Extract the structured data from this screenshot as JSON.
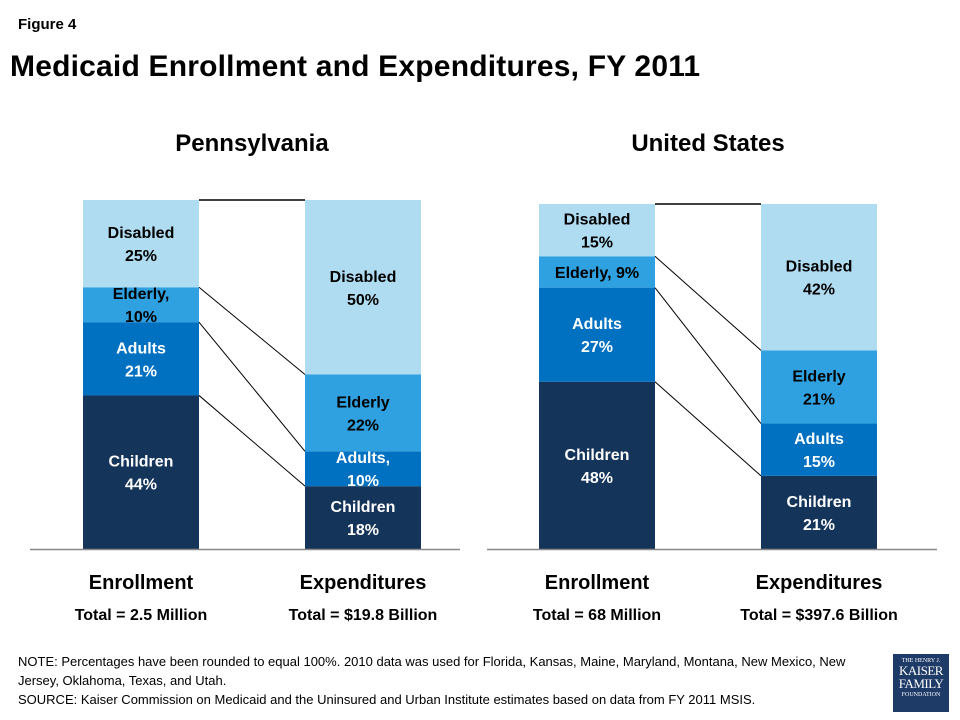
{
  "figure_label": "Figure 4",
  "title": "Medicaid Enrollment and Expenditures, FY 2011",
  "colors": {
    "Disabled": "#B0DCF2",
    "Elderly": "#2FA1E0",
    "Adults": "#0070C0",
    "Children": "#15345A"
  },
  "chart_data": [
    {
      "type": "stacked-bar",
      "title": "Pennsylvania",
      "unit": "%",
      "bars": [
        {
          "label": "Enrollment",
          "total": "Total = 2.5 Million",
          "segments": [
            {
              "category": "Children",
              "value": 44,
              "lines": [
                "Children",
                "44%"
              ]
            },
            {
              "category": "Adults",
              "value": 21,
              "lines": [
                "Adults",
                "21%"
              ]
            },
            {
              "category": "Elderly",
              "value": 10,
              "lines": [
                "Elderly,",
                "10%"
              ]
            },
            {
              "category": "Disabled",
              "value": 25,
              "lines": [
                "Disabled",
                "25%"
              ]
            }
          ]
        },
        {
          "label": "Expenditures",
          "total": "Total = $19.8 Billion",
          "segments": [
            {
              "category": "Children",
              "value": 18,
              "lines": [
                "Children",
                "18%"
              ]
            },
            {
              "category": "Adults",
              "value": 10,
              "lines": [
                "Adults,",
                "10%"
              ]
            },
            {
              "category": "Elderly",
              "value": 22,
              "lines": [
                "Elderly",
                "22%"
              ]
            },
            {
              "category": "Disabled",
              "value": 50,
              "lines": [
                "Disabled",
                "50%"
              ]
            }
          ]
        }
      ]
    },
    {
      "type": "stacked-bar",
      "title": "United States",
      "unit": "%",
      "bars": [
        {
          "label": "Enrollment",
          "total": "Total = 68 Million",
          "segments": [
            {
              "category": "Children",
              "value": 48,
              "lines": [
                "Children",
                "48%"
              ]
            },
            {
              "category": "Adults",
              "value": 27,
              "lines": [
                "Adults",
                "27%"
              ]
            },
            {
              "category": "Elderly",
              "value": 9,
              "lines": [
                "Elderly, 9%"
              ]
            },
            {
              "category": "Disabled",
              "value": 15,
              "lines": [
                "Disabled",
                "15%"
              ]
            }
          ]
        },
        {
          "label": "Expenditures",
          "total": "Total = $397.6 Billion",
          "segments": [
            {
              "category": "Children",
              "value": 21,
              "lines": [
                "Children",
                "21%"
              ]
            },
            {
              "category": "Adults",
              "value": 15,
              "lines": [
                "Adults",
                "15%"
              ]
            },
            {
              "category": "Elderly",
              "value": 21,
              "lines": [
                "Elderly",
                "21%"
              ]
            },
            {
              "category": "Disabled",
              "value": 42,
              "lines": [
                "Disabled",
                "42%"
              ]
            }
          ]
        }
      ]
    }
  ],
  "notes": {
    "note": "NOTE: Percentages have been rounded to equal 100%. 2010 data was used for Florida, Kansas, Maine, Maryland, Montana, New Mexico, New Jersey, Oklahoma, Texas, and Utah.",
    "source": "SOURCE: Kaiser Commission on Medicaid and the Uninsured and Urban Institute estimates based on data from FY 2011 MSIS."
  },
  "logo": {
    "line1": "THE HENRY J.",
    "line2": "KAISER",
    "line3": "FAMILY",
    "line4": "FOUNDATION"
  }
}
